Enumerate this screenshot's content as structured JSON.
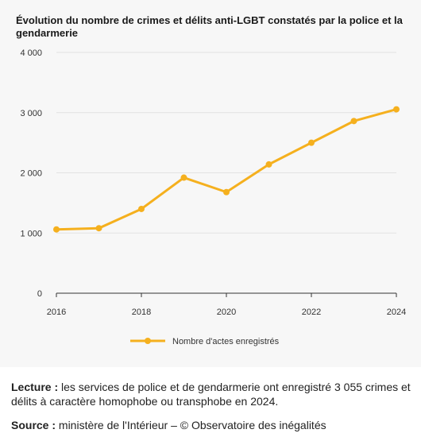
{
  "chart_data": {
    "type": "line",
    "title": "Évolution du nombre de crimes et délits anti-LGBT constatés par la police et la gendarmerie",
    "x": [
      2016,
      2017,
      2018,
      2019,
      2020,
      2021,
      2022,
      2023,
      2024
    ],
    "series": [
      {
        "name": "Nombre d'actes enregistrés",
        "values": [
          1060,
          1080,
          1400,
          1920,
          1680,
          2140,
          2500,
          2860,
          3055
        ]
      }
    ],
    "xlim": [
      2016,
      2024
    ],
    "ylim": [
      0,
      4000
    ],
    "xticks": [
      2016,
      2018,
      2020,
      2022,
      2024
    ],
    "xtick_labels": [
      "2016",
      "2018",
      "2020",
      "2022",
      "2024"
    ],
    "yticks": [
      0,
      1000,
      2000,
      3000,
      4000
    ],
    "ytick_labels": [
      "0",
      "1 000",
      "2 000",
      "3 000",
      "4 000"
    ],
    "grid": "horizontal",
    "legend": "bottom-center",
    "color": "#f5b01e"
  },
  "notes": {
    "lecture_label": "Lecture :",
    "lecture_text": " les services de police et de gendarmerie ont enregistré 3 055 crimes et délits à caractère homophobe ou transphobe en 2024.",
    "source_label": "Source :",
    "source_text": " ministère de l'Intérieur – © Observatoire des inégalités"
  }
}
